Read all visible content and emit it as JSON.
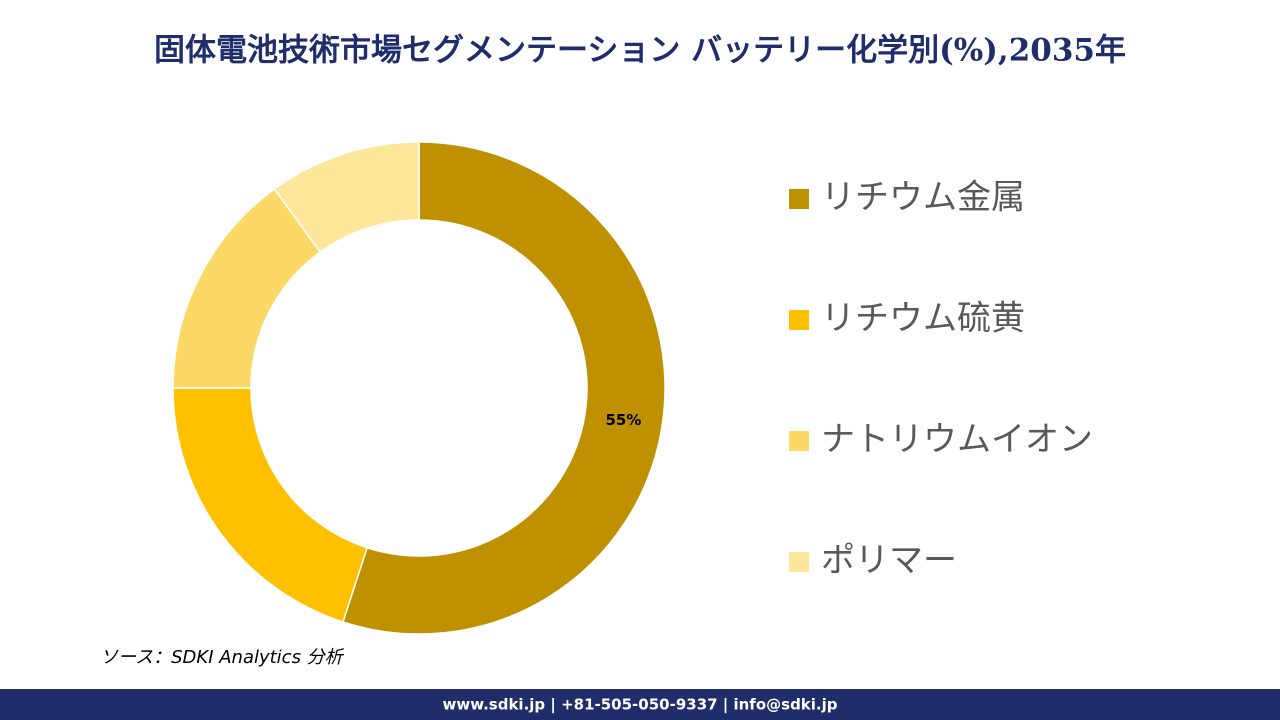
{
  "chart_data": {
    "type": "donut",
    "title": "固体電池技術市場セグメンテーション バッテリー化学別(%),2035年",
    "categories": [
      "リチウム金属",
      "リチウム硫黄",
      "ナトリウムイオン",
      "ポリマー"
    ],
    "values": [
      55,
      20,
      15,
      10
    ],
    "value_labels": [
      "55%",
      null,
      null,
      null
    ],
    "colors": [
      "#bf9000",
      "#ffc000",
      "#fcd966",
      "#fee69b"
    ],
    "legend": "right"
  },
  "source": "ソース：SDKI Analytics 分析",
  "footer": "www.sdki.jp | +81-505-050-9337 | info@sdki.jp"
}
